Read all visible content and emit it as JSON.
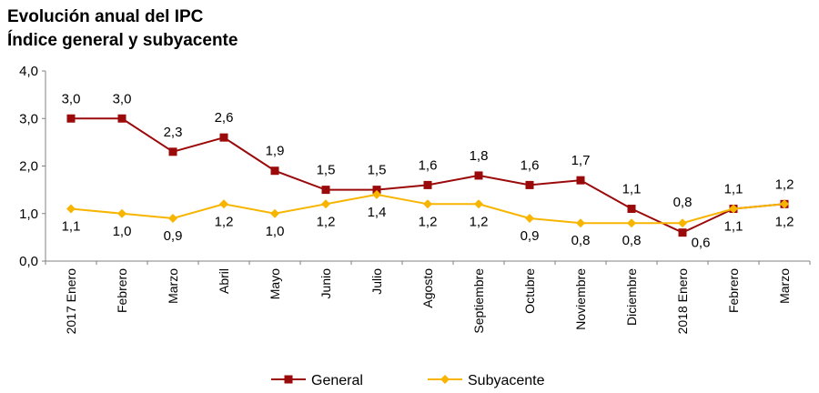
{
  "chart_data": {
    "type": "line",
    "title": "Evolución anual del IPC",
    "subtitle": "Índice general y subyacente",
    "xlabel": "",
    "ylabel": "",
    "ylim": [
      0,
      4
    ],
    "yticks": [
      "0,0",
      "1,0",
      "2,0",
      "3,0",
      "4,0"
    ],
    "grid": false,
    "legend_position": "bottom",
    "categories": [
      "2017 Enero",
      "Febrero",
      "Marzo",
      "Abril",
      "Mayo",
      "Junio",
      "Julio",
      "Agosto",
      "Septiembre",
      "Octubre",
      "Noviembre",
      "Diciembre",
      "2018 Enero",
      "Febrero",
      "Marzo"
    ],
    "series": [
      {
        "name": "General",
        "color": "#9b0a0a",
        "marker": "square",
        "values": [
          3.0,
          3.0,
          2.3,
          2.6,
          1.9,
          1.5,
          1.5,
          1.6,
          1.8,
          1.6,
          1.7,
          1.1,
          0.6,
          1.1,
          1.2
        ],
        "labels": [
          "3,0",
          "3,0",
          "2,3",
          "2,6",
          "1,9",
          "1,5",
          "1,5",
          "1,6",
          "1,8",
          "1,6",
          "1,7",
          "1,1",
          "0,6",
          "1,1",
          "1,2"
        ]
      },
      {
        "name": "Subyacente",
        "color": "#f7b500",
        "marker": "diamond",
        "values": [
          1.1,
          1.0,
          0.9,
          1.2,
          1.0,
          1.2,
          1.4,
          1.2,
          1.2,
          0.9,
          0.8,
          0.8,
          0.8,
          1.1,
          1.2
        ],
        "labels": [
          "1,1",
          "1,0",
          "0,9",
          "1,2",
          "1,0",
          "1,2",
          "1,4",
          "1,2",
          "1,2",
          "0,9",
          "0,8",
          "0,8",
          "0,8",
          "1,1",
          "1,2"
        ]
      }
    ]
  }
}
